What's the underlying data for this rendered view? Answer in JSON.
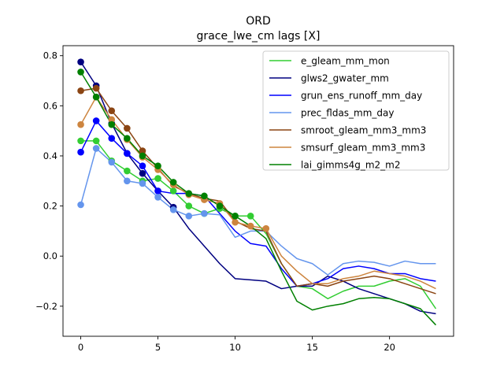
{
  "chart_data": {
    "type": "line",
    "title": "ORD",
    "subtitle": "grace_lwe_cm lags [X]",
    "xlabel": "",
    "ylabel": "",
    "xlim": [
      -1.15,
      24.15
    ],
    "ylim": [
      -0.32,
      0.84
    ],
    "xticks": [
      0,
      5,
      10,
      15,
      20
    ],
    "yticks": [
      -0.2,
      0.0,
      0.2,
      0.4,
      0.6,
      0.8
    ],
    "ytick_labels": [
      "−0.2",
      "0.0",
      "0.2",
      "0.4",
      "0.6",
      "0.8"
    ],
    "grid": false,
    "legend_position": "top-right",
    "x": [
      0,
      1,
      2,
      3,
      4,
      5,
      6,
      7,
      8,
      9,
      10,
      11,
      12,
      13,
      14,
      15,
      16,
      17,
      18,
      19,
      20,
      21,
      22,
      23
    ],
    "series": [
      {
        "name": "e_gleam_mm_mon",
        "color": "#32cd32",
        "marker_count": 12,
        "values": [
          0.46,
          0.46,
          0.38,
          0.34,
          0.3,
          0.31,
          0.26,
          0.2,
          0.17,
          0.19,
          0.16,
          0.16,
          0.09,
          -0.03,
          -0.12,
          -0.13,
          -0.17,
          -0.14,
          -0.12,
          -0.12,
          -0.1,
          -0.09,
          -0.12,
          -0.21
        ]
      },
      {
        "name": "glws2_gwater_mm",
        "color": "#000080",
        "marker_count": 7,
        "values": [
          0.775,
          0.68,
          0.53,
          0.41,
          0.33,
          0.26,
          0.195,
          0.11,
          0.04,
          -0.03,
          -0.09,
          -0.095,
          -0.1,
          -0.13,
          -0.12,
          -0.12,
          -0.08,
          -0.1,
          -0.13,
          -0.15,
          -0.17,
          -0.19,
          -0.22,
          -0.23
        ]
      },
      {
        "name": "grun_ens_runoff_mm_day",
        "color": "#0000ff",
        "marker_count": 6,
        "values": [
          0.415,
          0.54,
          0.47,
          0.41,
          0.36,
          0.26,
          0.25,
          0.25,
          0.24,
          0.17,
          0.1,
          0.05,
          0.04,
          -0.05,
          -0.12,
          -0.11,
          -0.09,
          -0.05,
          -0.04,
          -0.05,
          -0.07,
          -0.07,
          -0.09,
          -0.1
        ]
      },
      {
        "name": "prec_fldas_mm_day",
        "color": "#6495ed",
        "marker_count": 9,
        "values": [
          0.205,
          0.43,
          0.375,
          0.3,
          0.29,
          0.235,
          0.185,
          0.16,
          0.17,
          0.165,
          0.075,
          0.1,
          0.1,
          0.04,
          -0.01,
          -0.03,
          -0.075,
          -0.03,
          -0.02,
          -0.025,
          -0.04,
          -0.02,
          -0.03,
          -0.03
        ]
      },
      {
        "name": "smroot_gleam_mm3_mm3",
        "color": "#8b4513",
        "marker_count": 5,
        "values": [
          0.66,
          0.67,
          0.58,
          0.51,
          0.42,
          0.35,
          0.28,
          0.25,
          0.23,
          0.22,
          0.14,
          0.11,
          0.1,
          -0.03,
          -0.12,
          -0.11,
          -0.12,
          -0.1,
          -0.09,
          -0.08,
          -0.09,
          -0.11,
          -0.13,
          -0.15
        ]
      },
      {
        "name": "smsurf_gleam_mm3_mm3",
        "color": "#cd853f",
        "marker_count": 13,
        "values": [
          0.525,
          0.635,
          0.545,
          0.465,
          0.395,
          0.345,
          0.285,
          0.245,
          0.225,
          0.21,
          0.135,
          0.12,
          0.11,
          0.0,
          -0.06,
          -0.11,
          -0.11,
          -0.09,
          -0.08,
          -0.06,
          -0.07,
          -0.08,
          -0.1,
          -0.13
        ]
      },
      {
        "name": "lai_gimms4g_m2_m2",
        "color": "#008000",
        "marker_count": 11,
        "values": [
          0.735,
          0.635,
          0.525,
          0.47,
          0.4,
          0.36,
          0.295,
          0.25,
          0.24,
          0.2,
          0.16,
          0.12,
          0.07,
          -0.06,
          -0.18,
          -0.215,
          -0.2,
          -0.19,
          -0.17,
          -0.165,
          -0.17,
          -0.19,
          -0.21,
          -0.275
        ]
      }
    ]
  }
}
